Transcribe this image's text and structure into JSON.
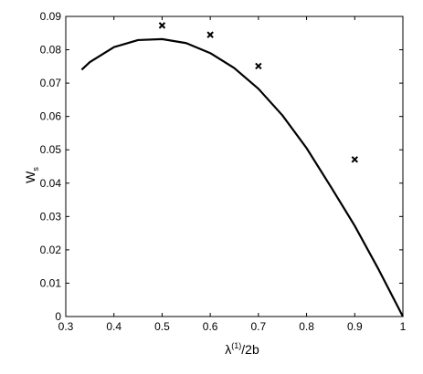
{
  "chart_data": {
    "type": "line",
    "xlabel": {
      "base": "λ",
      "sup": "(1)",
      "rest": "/2b"
    },
    "ylabel": {
      "base": "W",
      "sub": "s"
    },
    "xlim": [
      0.3,
      1.0
    ],
    "ylim": [
      0,
      0.09
    ],
    "xticks": [
      0.3,
      0.4,
      0.5,
      0.6,
      0.7,
      0.8,
      0.9,
      1.0
    ],
    "xtick_labels": [
      "0.3",
      "0.4",
      "0.5",
      "0.6",
      "0.7",
      "0.8",
      "0.9",
      "1"
    ],
    "yticks": [
      0,
      0.01,
      0.02,
      0.03,
      0.04,
      0.05,
      0.06,
      0.07,
      0.08,
      0.09
    ],
    "ytick_labels": [
      "0",
      "0.01",
      "0.02",
      "0.03",
      "0.04",
      "0.05",
      "0.06",
      "0.07",
      "0.08",
      "0.09"
    ],
    "grid": false,
    "series": [
      {
        "kind": "line",
        "color": "#000000",
        "x": [
          0.333,
          0.35,
          0.4,
          0.45,
          0.5,
          0.55,
          0.6,
          0.65,
          0.7,
          0.75,
          0.8,
          0.85,
          0.9,
          0.95,
          1.0
        ],
        "y": [
          0.074,
          0.0763,
          0.0808,
          0.0829,
          0.0832,
          0.082,
          0.079,
          0.0745,
          0.0683,
          0.0603,
          0.0505,
          0.039,
          0.0272,
          0.014,
          0.0
        ]
      },
      {
        "kind": "marker",
        "marker": "x",
        "color": "#000000",
        "x": [
          0.5,
          0.6,
          0.7,
          0.9
        ],
        "y": [
          0.0873,
          0.0845,
          0.0751,
          0.0471
        ]
      }
    ]
  }
}
